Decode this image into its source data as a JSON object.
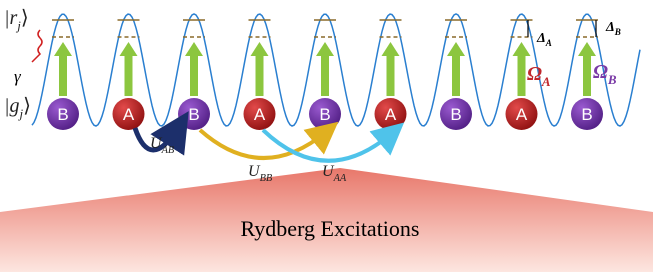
{
  "left_labels": {
    "rydberg_state": {
      "base": "|r",
      "sub": "j",
      "close": "⟩"
    },
    "decay": "γ",
    "ground_state": {
      "base": "|g",
      "sub": "j",
      "close": "⟩"
    }
  },
  "atoms": [
    "B",
    "A",
    "B",
    "A",
    "B",
    "A",
    "B",
    "A",
    "B"
  ],
  "interactions": [
    {
      "base": "U",
      "sub": "AB"
    },
    {
      "base": "U",
      "sub": "BB"
    },
    {
      "base": "U",
      "sub": "AA"
    }
  ],
  "detunings": [
    {
      "base": "Δ",
      "sub": "A"
    },
    {
      "base": "Δ",
      "sub": "B"
    }
  ],
  "rabi": [
    {
      "base": "Ω",
      "sub": "A"
    },
    {
      "base": "Ω",
      "sub": "B"
    }
  ],
  "footer": "Rydberg Excitations"
}
